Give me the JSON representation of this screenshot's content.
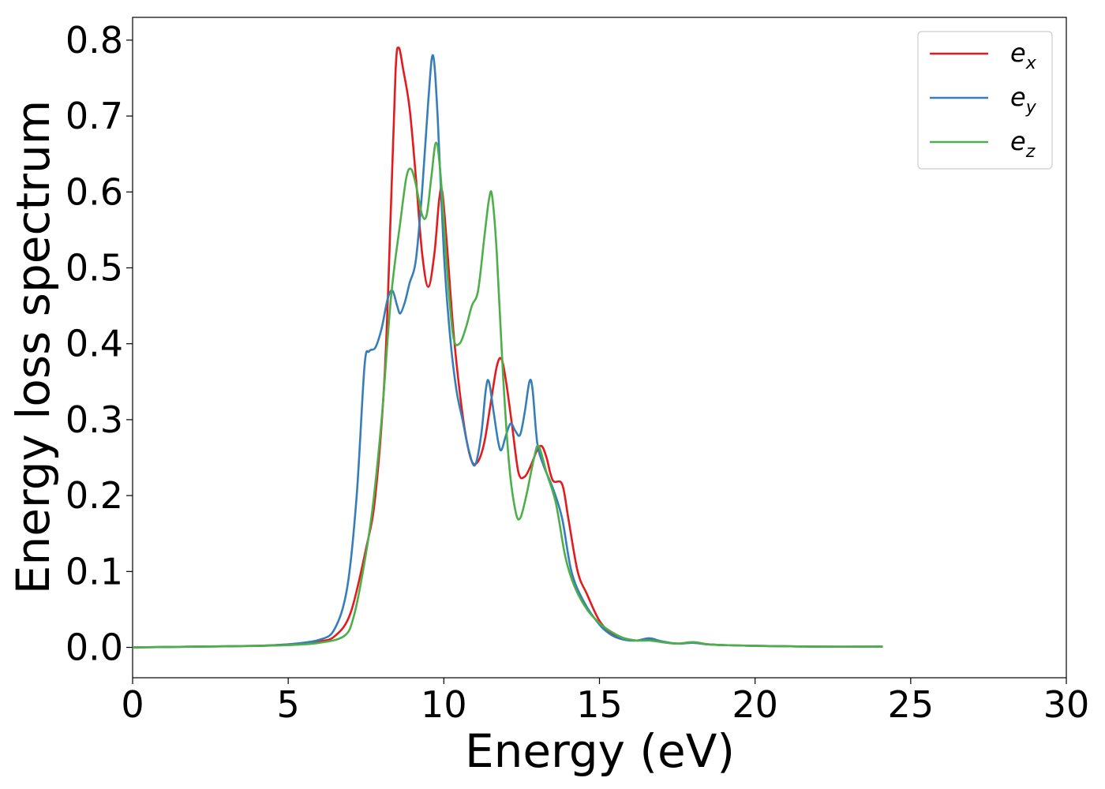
{
  "chart_data": {
    "type": "line",
    "xlabel": "Energy (eV)",
    "ylabel": "Energy loss spectrum",
    "xlim": [
      0,
      30
    ],
    "ylim": [
      -0.04,
      0.83
    ],
    "x_ticks": [
      0,
      5,
      10,
      15,
      20,
      25,
      30
    ],
    "y_ticks": [
      0.0,
      0.1,
      0.2,
      0.3,
      0.4,
      0.5,
      0.6,
      0.7,
      0.8
    ],
    "x_tick_labels": [
      "0",
      "5",
      "10",
      "15",
      "20",
      "25",
      "30"
    ],
    "y_tick_labels": [
      "0.0",
      "0.1",
      "0.2",
      "0.3",
      "0.4",
      "0.5",
      "0.6",
      "0.7",
      "0.8"
    ],
    "grid": false,
    "legend_position": "top-right",
    "series": [
      {
        "name": "e_x",
        "label_base": "e",
        "label_sub": "x",
        "color": "#e41a1c",
        "points": [
          [
            0,
            0
          ],
          [
            2,
            0.001
          ],
          [
            4,
            0.002
          ],
          [
            5,
            0.004
          ],
          [
            6,
            0.008
          ],
          [
            6.5,
            0.015
          ],
          [
            7,
            0.045
          ],
          [
            7.5,
            0.13
          ],
          [
            7.8,
            0.2
          ],
          [
            8.1,
            0.36
          ],
          [
            8.3,
            0.58
          ],
          [
            8.45,
            0.76
          ],
          [
            8.55,
            0.79
          ],
          [
            8.7,
            0.76
          ],
          [
            8.9,
            0.71
          ],
          [
            9.1,
            0.62
          ],
          [
            9.3,
            0.52
          ],
          [
            9.5,
            0.475
          ],
          [
            9.7,
            0.52
          ],
          [
            9.85,
            0.59
          ],
          [
            9.95,
            0.6
          ],
          [
            10.1,
            0.53
          ],
          [
            10.3,
            0.42
          ],
          [
            10.5,
            0.34
          ],
          [
            10.7,
            0.28
          ],
          [
            10.9,
            0.245
          ],
          [
            11.1,
            0.245
          ],
          [
            11.3,
            0.27
          ],
          [
            11.5,
            0.32
          ],
          [
            11.7,
            0.37
          ],
          [
            11.85,
            0.38
          ],
          [
            12.0,
            0.35
          ],
          [
            12.2,
            0.29
          ],
          [
            12.4,
            0.23
          ],
          [
            12.6,
            0.225
          ],
          [
            12.8,
            0.24
          ],
          [
            13.0,
            0.26
          ],
          [
            13.15,
            0.265
          ],
          [
            13.3,
            0.25
          ],
          [
            13.5,
            0.22
          ],
          [
            13.8,
            0.215
          ],
          [
            14.0,
            0.17
          ],
          [
            14.3,
            0.1
          ],
          [
            14.6,
            0.07
          ],
          [
            15.0,
            0.035
          ],
          [
            15.4,
            0.018
          ],
          [
            15.8,
            0.012
          ],
          [
            16.2,
            0.009
          ],
          [
            16.6,
            0.01
          ],
          [
            17.0,
            0.007
          ],
          [
            17.5,
            0.005
          ],
          [
            18.0,
            0.006
          ],
          [
            18.5,
            0.004
          ],
          [
            19.0,
            0.003
          ],
          [
            20,
            0.002
          ],
          [
            22,
            0.001
          ],
          [
            24.1,
            0.001
          ]
        ]
      },
      {
        "name": "e_y",
        "label_base": "e",
        "label_sub": "y",
        "color": "#377eb8",
        "points": [
          [
            0,
            0
          ],
          [
            2,
            0.001
          ],
          [
            4,
            0.002
          ],
          [
            5,
            0.004
          ],
          [
            6,
            0.01
          ],
          [
            6.5,
            0.025
          ],
          [
            6.9,
            0.08
          ],
          [
            7.2,
            0.2
          ],
          [
            7.45,
            0.37
          ],
          [
            7.6,
            0.39
          ],
          [
            7.8,
            0.395
          ],
          [
            8.0,
            0.42
          ],
          [
            8.2,
            0.46
          ],
          [
            8.35,
            0.47
          ],
          [
            8.5,
            0.45
          ],
          [
            8.6,
            0.44
          ],
          [
            8.75,
            0.455
          ],
          [
            8.9,
            0.48
          ],
          [
            9.1,
            0.51
          ],
          [
            9.3,
            0.6
          ],
          [
            9.5,
            0.72
          ],
          [
            9.65,
            0.78
          ],
          [
            9.8,
            0.7
          ],
          [
            10.0,
            0.52
          ],
          [
            10.2,
            0.41
          ],
          [
            10.4,
            0.34
          ],
          [
            10.6,
            0.3
          ],
          [
            10.8,
            0.26
          ],
          [
            11.0,
            0.24
          ],
          [
            11.2,
            0.28
          ],
          [
            11.35,
            0.34
          ],
          [
            11.45,
            0.35
          ],
          [
            11.6,
            0.31
          ],
          [
            11.75,
            0.27
          ],
          [
            11.85,
            0.26
          ],
          [
            12.0,
            0.28
          ],
          [
            12.15,
            0.295
          ],
          [
            12.3,
            0.285
          ],
          [
            12.45,
            0.28
          ],
          [
            12.6,
            0.31
          ],
          [
            12.75,
            0.35
          ],
          [
            12.85,
            0.34
          ],
          [
            13.0,
            0.27
          ],
          [
            13.2,
            0.24
          ],
          [
            13.5,
            0.21
          ],
          [
            13.8,
            0.17
          ],
          [
            14.1,
            0.1
          ],
          [
            14.5,
            0.06
          ],
          [
            15.0,
            0.03
          ],
          [
            15.4,
            0.016
          ],
          [
            15.8,
            0.01
          ],
          [
            16.2,
            0.009
          ],
          [
            16.6,
            0.012
          ],
          [
            17.0,
            0.008
          ],
          [
            17.5,
            0.005
          ],
          [
            18.0,
            0.006
          ],
          [
            18.5,
            0.004
          ],
          [
            19.0,
            0.003
          ],
          [
            20,
            0.002
          ],
          [
            22,
            0.001
          ],
          [
            24.1,
            0.001
          ]
        ]
      },
      {
        "name": "e_z",
        "label_base": "e",
        "label_sub": "z",
        "color": "#4daf4a",
        "points": [
          [
            0,
            0
          ],
          [
            2,
            0.001
          ],
          [
            4,
            0.002
          ],
          [
            5,
            0.003
          ],
          [
            6,
            0.006
          ],
          [
            6.8,
            0.015
          ],
          [
            7.1,
            0.04
          ],
          [
            7.4,
            0.1
          ],
          [
            7.7,
            0.18
          ],
          [
            8.0,
            0.3
          ],
          [
            8.3,
            0.46
          ],
          [
            8.6,
            0.56
          ],
          [
            8.8,
            0.62
          ],
          [
            8.95,
            0.63
          ],
          [
            9.1,
            0.61
          ],
          [
            9.3,
            0.57
          ],
          [
            9.45,
            0.57
          ],
          [
            9.6,
            0.62
          ],
          [
            9.75,
            0.665
          ],
          [
            9.9,
            0.62
          ],
          [
            10.1,
            0.5
          ],
          [
            10.3,
            0.41
          ],
          [
            10.5,
            0.4
          ],
          [
            10.7,
            0.42
          ],
          [
            10.9,
            0.45
          ],
          [
            11.1,
            0.47
          ],
          [
            11.3,
            0.54
          ],
          [
            11.45,
            0.59
          ],
          [
            11.55,
            0.595
          ],
          [
            11.7,
            0.52
          ],
          [
            11.9,
            0.36
          ],
          [
            12.1,
            0.24
          ],
          [
            12.3,
            0.18
          ],
          [
            12.45,
            0.17
          ],
          [
            12.65,
            0.2
          ],
          [
            12.9,
            0.25
          ],
          [
            13.05,
            0.265
          ],
          [
            13.3,
            0.23
          ],
          [
            13.6,
            0.19
          ],
          [
            13.9,
            0.12
          ],
          [
            14.2,
            0.08
          ],
          [
            14.6,
            0.05
          ],
          [
            15.0,
            0.032
          ],
          [
            15.4,
            0.02
          ],
          [
            15.8,
            0.012
          ],
          [
            16.2,
            0.009
          ],
          [
            16.6,
            0.009
          ],
          [
            17.0,
            0.007
          ],
          [
            17.5,
            0.005
          ],
          [
            18.0,
            0.007
          ],
          [
            18.5,
            0.004
          ],
          [
            19.0,
            0.003
          ],
          [
            20,
            0.002
          ],
          [
            22,
            0.001
          ],
          [
            24.1,
            0.001
          ]
        ]
      }
    ]
  }
}
